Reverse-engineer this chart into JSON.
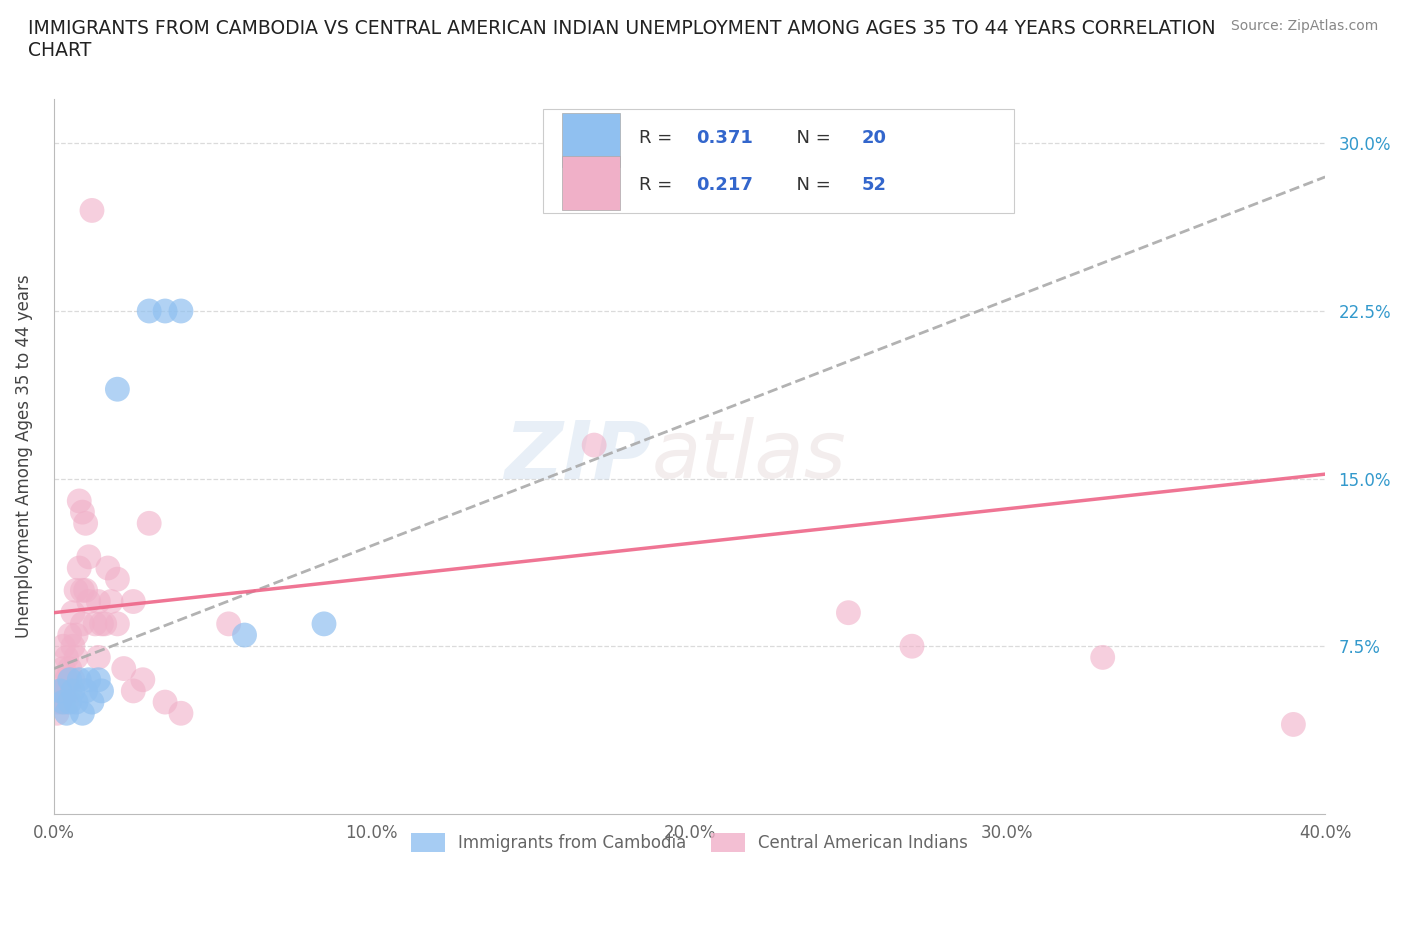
{
  "title": "IMMIGRANTS FROM CAMBODIA VS CENTRAL AMERICAN INDIAN UNEMPLOYMENT AMONG AGES 35 TO 44 YEARS CORRELATION\nCHART",
  "source": "Source: ZipAtlas.com",
  "xlabel": "",
  "ylabel": "Unemployment Among Ages 35 to 44 years",
  "xlim": [
    0.0,
    0.4
  ],
  "ylim": [
    0.0,
    0.32
  ],
  "xticks": [
    0.0,
    0.1,
    0.2,
    0.3,
    0.4
  ],
  "xtick_labels": [
    "0.0%",
    "10.0%",
    "20.0%",
    "30.0%",
    "40.0%"
  ],
  "yticks": [
    0.075,
    0.15,
    0.225,
    0.3
  ],
  "ytick_labels": [
    "7.5%",
    "15.0%",
    "22.5%",
    "30.0%"
  ],
  "watermark_zip": "ZIP",
  "watermark_atlas": "atlas",
  "blue_color": "#90c0f0",
  "pink_color": "#f0b0c8",
  "blue_trend_color": "#5599dd",
  "pink_trend_color": "#ee6688",
  "gray_trend_color": "#aaaaaa",
  "cambodia_points": [
    [
      0.002,
      0.055
    ],
    [
      0.003,
      0.05
    ],
    [
      0.004,
      0.045
    ],
    [
      0.005,
      0.06
    ],
    [
      0.005,
      0.05
    ],
    [
      0.006,
      0.055
    ],
    [
      0.007,
      0.05
    ],
    [
      0.008,
      0.06
    ],
    [
      0.009,
      0.045
    ],
    [
      0.01,
      0.055
    ],
    [
      0.011,
      0.06
    ],
    [
      0.012,
      0.05
    ],
    [
      0.014,
      0.06
    ],
    [
      0.015,
      0.055
    ],
    [
      0.02,
      0.19
    ],
    [
      0.03,
      0.225
    ],
    [
      0.035,
      0.225
    ],
    [
      0.04,
      0.225
    ],
    [
      0.06,
      0.08
    ],
    [
      0.085,
      0.085
    ]
  ],
  "central_american_points": [
    [
      0.001,
      0.05
    ],
    [
      0.001,
      0.045
    ],
    [
      0.002,
      0.06
    ],
    [
      0.002,
      0.055
    ],
    [
      0.002,
      0.05
    ],
    [
      0.003,
      0.075
    ],
    [
      0.003,
      0.065
    ],
    [
      0.003,
      0.055
    ],
    [
      0.004,
      0.07
    ],
    [
      0.004,
      0.06
    ],
    [
      0.004,
      0.05
    ],
    [
      0.005,
      0.08
    ],
    [
      0.005,
      0.065
    ],
    [
      0.005,
      0.055
    ],
    [
      0.006,
      0.09
    ],
    [
      0.006,
      0.075
    ],
    [
      0.006,
      0.06
    ],
    [
      0.007,
      0.1
    ],
    [
      0.007,
      0.08
    ],
    [
      0.007,
      0.07
    ],
    [
      0.008,
      0.14
    ],
    [
      0.008,
      0.11
    ],
    [
      0.009,
      0.135
    ],
    [
      0.009,
      0.1
    ],
    [
      0.009,
      0.085
    ],
    [
      0.01,
      0.13
    ],
    [
      0.01,
      0.1
    ],
    [
      0.011,
      0.115
    ],
    [
      0.011,
      0.095
    ],
    [
      0.012,
      0.27
    ],
    [
      0.013,
      0.085
    ],
    [
      0.014,
      0.095
    ],
    [
      0.014,
      0.07
    ],
    [
      0.015,
      0.085
    ],
    [
      0.016,
      0.085
    ],
    [
      0.017,
      0.11
    ],
    [
      0.018,
      0.095
    ],
    [
      0.02,
      0.105
    ],
    [
      0.02,
      0.085
    ],
    [
      0.022,
      0.065
    ],
    [
      0.025,
      0.095
    ],
    [
      0.025,
      0.055
    ],
    [
      0.028,
      0.06
    ],
    [
      0.03,
      0.13
    ],
    [
      0.035,
      0.05
    ],
    [
      0.04,
      0.045
    ],
    [
      0.055,
      0.085
    ],
    [
      0.17,
      0.165
    ],
    [
      0.25,
      0.09
    ],
    [
      0.27,
      0.075
    ],
    [
      0.33,
      0.07
    ],
    [
      0.39,
      0.04
    ]
  ],
  "background_color": "#ffffff",
  "grid_color": "#cccccc",
  "title_color": "#222222",
  "axis_label_color": "#444444",
  "tick_color": "#666666",
  "right_tick_color": "#3399cc",
  "legend_blue_r": "0.371",
  "legend_blue_n": "20",
  "legend_pink_r": "0.217",
  "legend_pink_n": "52"
}
